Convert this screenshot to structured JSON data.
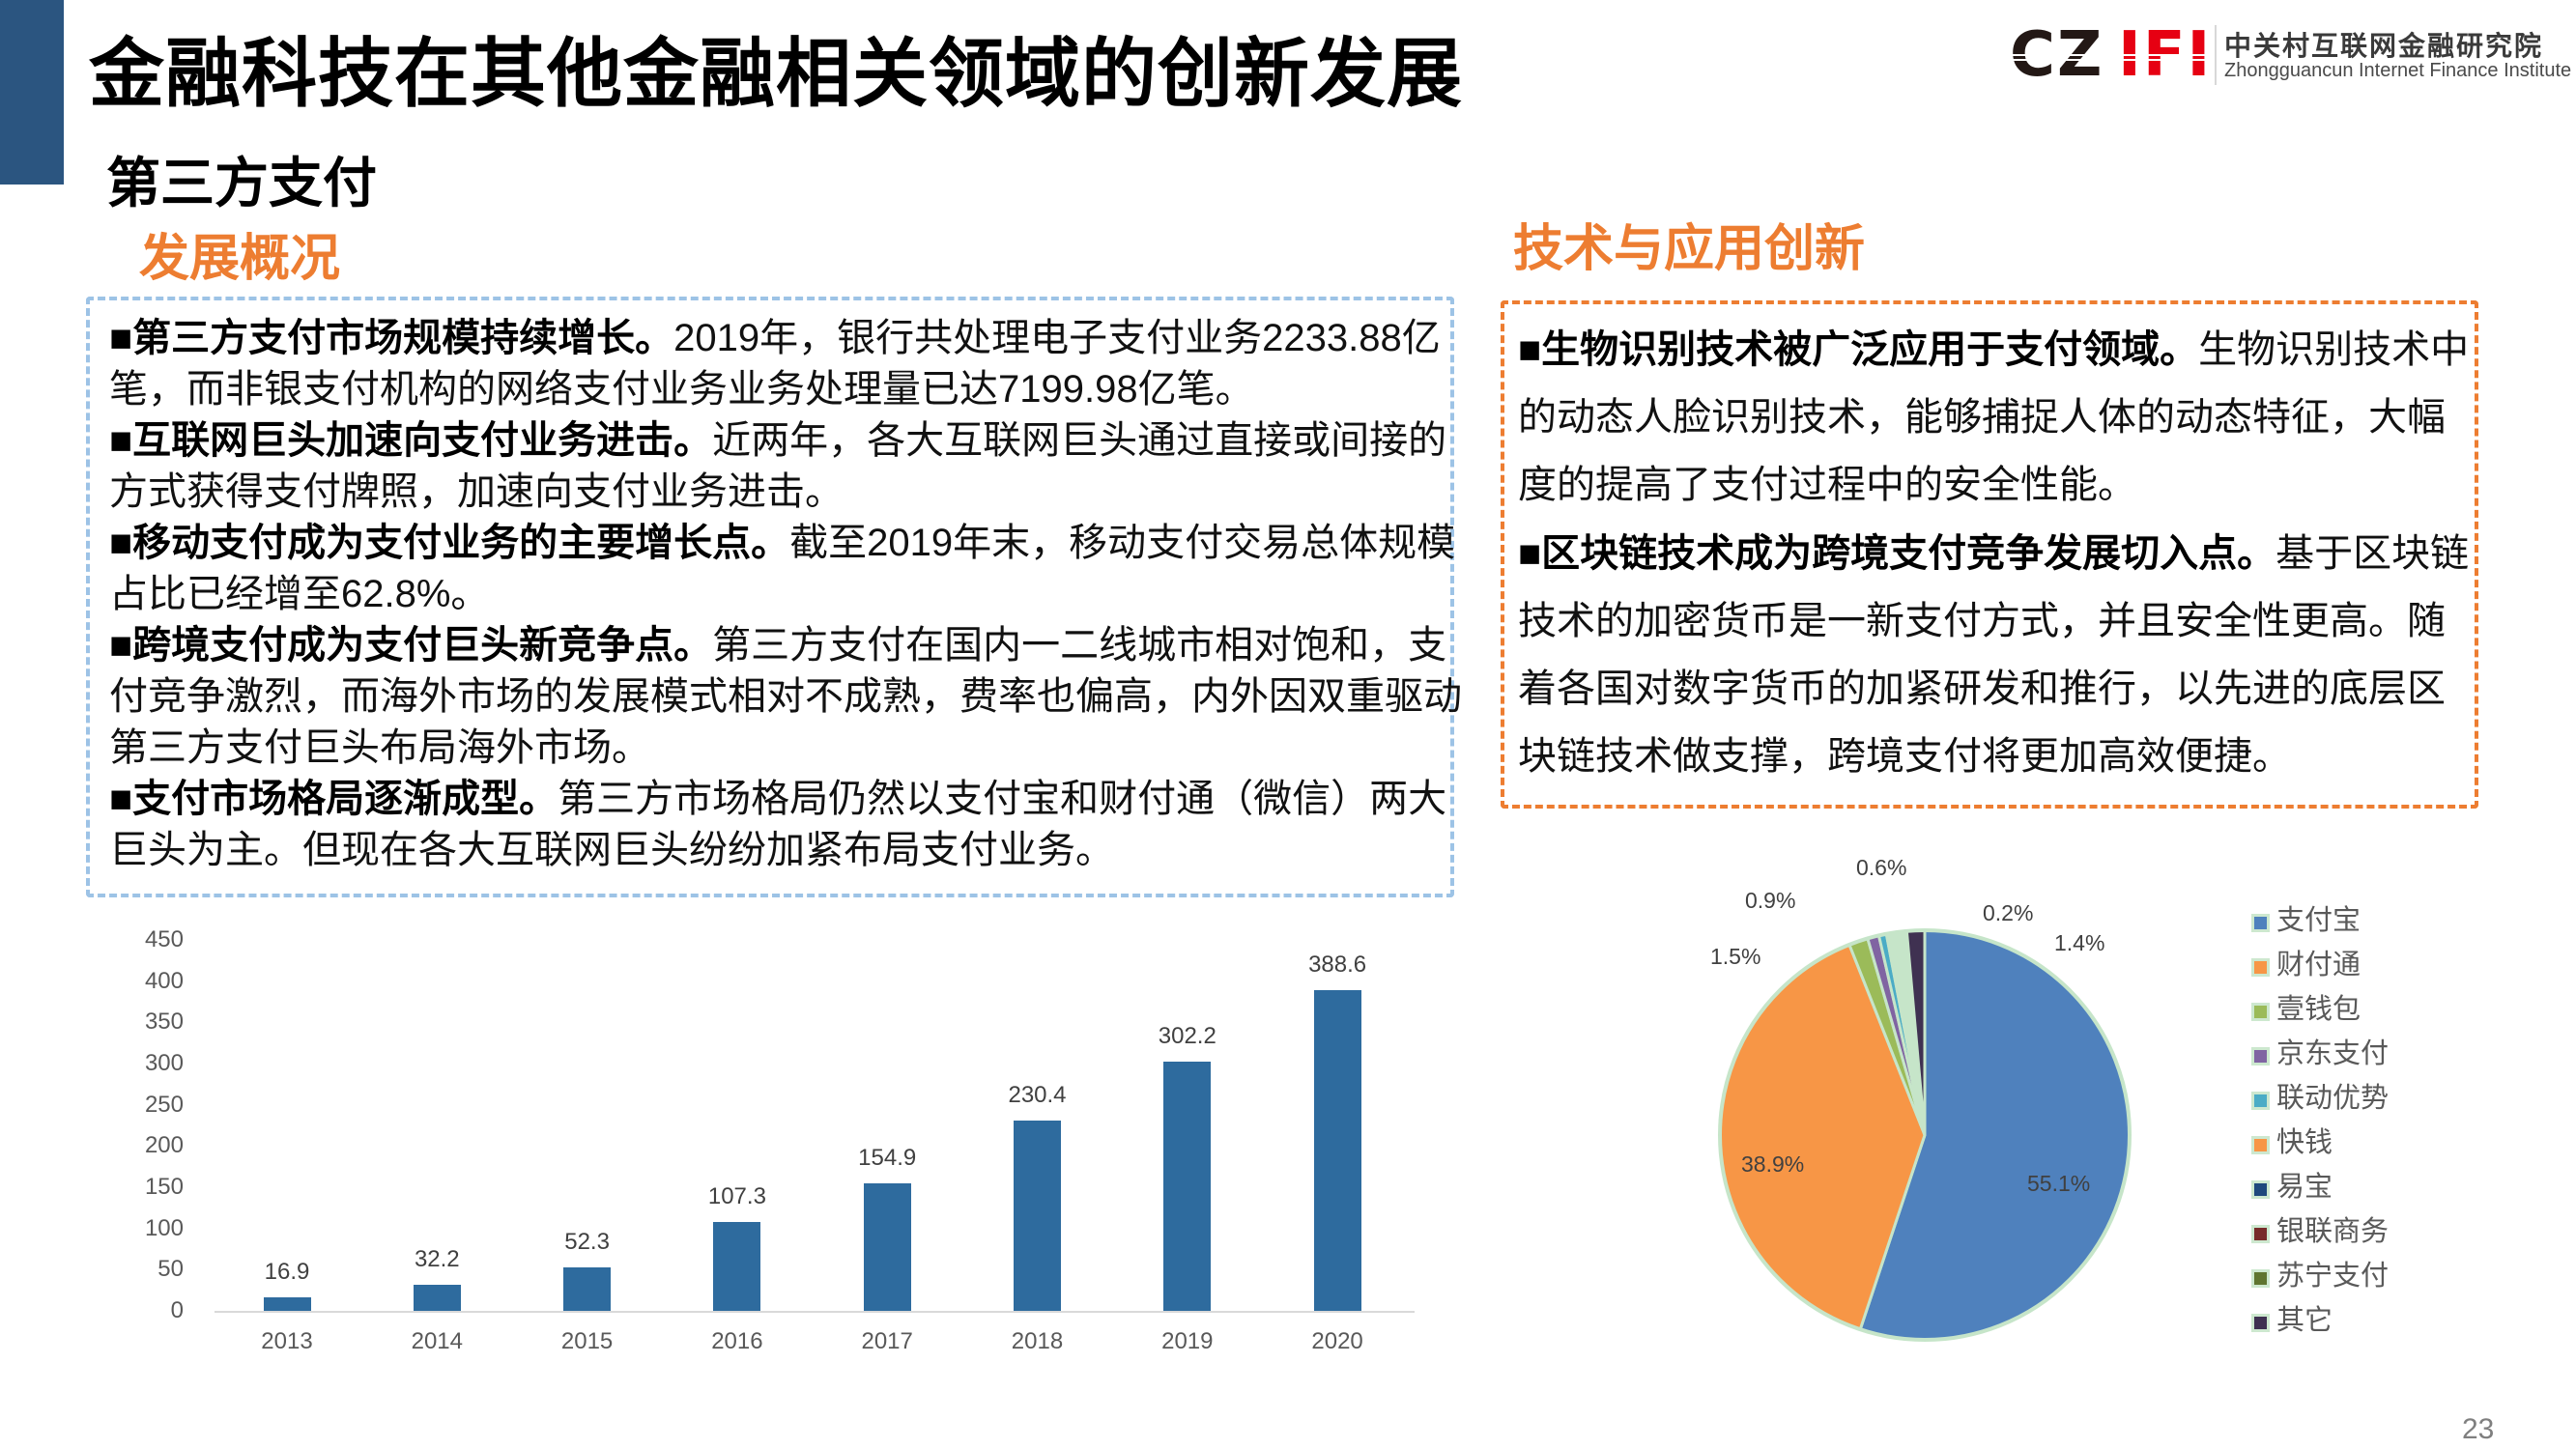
{
  "slide": {
    "title": "金融科技在其他金融相关领域的创新发展",
    "section_title": "第三方支付",
    "page_number": "23",
    "accent_color": "#ED7D31",
    "brand_bar_color": "#2B5580"
  },
  "logo": {
    "mark_left": "CZ",
    "mark_right": "IFI",
    "name_cn": "中关村互联网金融研究院",
    "name_en": "Zhongguancun Internet Finance Institute"
  },
  "overview": {
    "heading": "发展概况",
    "lines": [
      {
        "b": "■第三方支付市场规模持续增长。",
        "t": "2019年，银行共处理电子支付业务2233.88亿"
      },
      {
        "b": "",
        "t": "笔，而非银支付机构的网络支付业务业务处理量已达7199.98亿笔。"
      },
      {
        "b": "■互联网巨头加速向支付业务进击。",
        "t": "近两年，各大互联网巨头通过直接或间接的"
      },
      {
        "b": "",
        "t": "方式获得支付牌照，加速向支付业务进击。"
      },
      {
        "b": "■移动支付成为支付业务的主要增长点。",
        "t": "截至2019年末，移动支付交易总体规模"
      },
      {
        "b": "",
        "t": "占比已经增至62.8%。"
      },
      {
        "b": "■跨境支付成为支付巨头新竞争点。",
        "t": "第三方支付在国内一二线城市相对饱和，支"
      },
      {
        "b": "",
        "t": "付竞争激烈，而海外市场的发展模式相对不成熟，费率也偏高，内外因双重驱动"
      },
      {
        "b": "",
        "t": "第三方支付巨头布局海外市场。"
      },
      {
        "b": "■支付市场格局逐渐成型。",
        "t": "第三方市场格局仍然以支付宝和财付通（微信）两大"
      },
      {
        "b": "",
        "t": "巨头为主。但现在各大互联网巨头纷纷加紧布局支付业务。"
      }
    ]
  },
  "tech": {
    "heading": "技术与应用创新",
    "lines": [
      {
        "b": "■生物识别技术被广泛应用于支付领域。",
        "t": "生物识别技术中"
      },
      {
        "b": "",
        "t": "的动态人脸识别技术，能够捕捉人体的动态特征，大幅"
      },
      {
        "b": "",
        "t": "度的提高了支付过程中的安全性能。"
      },
      {
        "b": "■区块链技术成为跨境支付竞争发展切入点。",
        "t": "基于区块链"
      },
      {
        "b": "",
        "t": "技术的加密货币是一新支付方式，并且安全性更高。随"
      },
      {
        "b": "",
        "t": "着各国对数字货币的加紧研发和推行，以先进的底层区"
      },
      {
        "b": "",
        "t": "块链技术做支撑，跨境支付将更加高效便捷。"
      }
    ]
  },
  "chart_data": [
    {
      "type": "bar",
      "title": "",
      "xlabel": "",
      "ylabel": "",
      "categories": [
        "2013",
        "2014",
        "2015",
        "2016",
        "2017",
        "2018",
        "2019",
        "2020"
      ],
      "values": [
        16.9,
        32.2,
        52.3,
        107.3,
        154.9,
        230.4,
        302.2,
        388.6
      ],
      "data_labels": [
        "16.9",
        "32.2",
        "52.3",
        "107.3",
        "154.9",
        "230.4",
        "302.2",
        "388.6"
      ],
      "ylim": [
        0,
        450
      ],
      "yticks": [
        0,
        50,
        100,
        150,
        200,
        250,
        300,
        350,
        400,
        450
      ],
      "grid": false,
      "legend": "none",
      "bar_color": "#2E6B9E"
    },
    {
      "type": "pie",
      "title": "",
      "legend_position": "right",
      "start_angle": "12 o'clock, clockwise",
      "slices": [
        {
          "name": "支付宝",
          "value": 55.1,
          "label": "55.1%",
          "color": "#4F81BD"
        },
        {
          "name": "财付通",
          "value": 38.9,
          "label": "38.9%",
          "color": "#F79646"
        },
        {
          "name": "壹钱包",
          "value": 1.5,
          "label": "1.5%",
          "color": "#9BBB59"
        },
        {
          "name": "京东支付",
          "value": 0.9,
          "label": "0.9%",
          "color": "#8064A2"
        },
        {
          "name": "联动优势",
          "value": 0.6,
          "label": "0.6%",
          "color": "#4BACC6"
        },
        {
          "name": "快钱",
          "value": 0.2,
          "label": "0.2%",
          "color": "#F79646"
        },
        {
          "name": "易宝",
          "value": 0.2,
          "label": null,
          "estimated": true,
          "color": "#1F497D"
        },
        {
          "name": "银联商务",
          "value": 0.6,
          "label": null,
          "estimated": true,
          "color": "#772C2A"
        },
        {
          "name": "苏宁支付",
          "value": 0.6,
          "label": null,
          "estimated": true,
          "color": "#5F7530"
        },
        {
          "name": "其它",
          "value": 1.4,
          "label": "1.4%",
          "color": "#3F3151"
        }
      ],
      "border_color": "#C6E5C9"
    }
  ]
}
